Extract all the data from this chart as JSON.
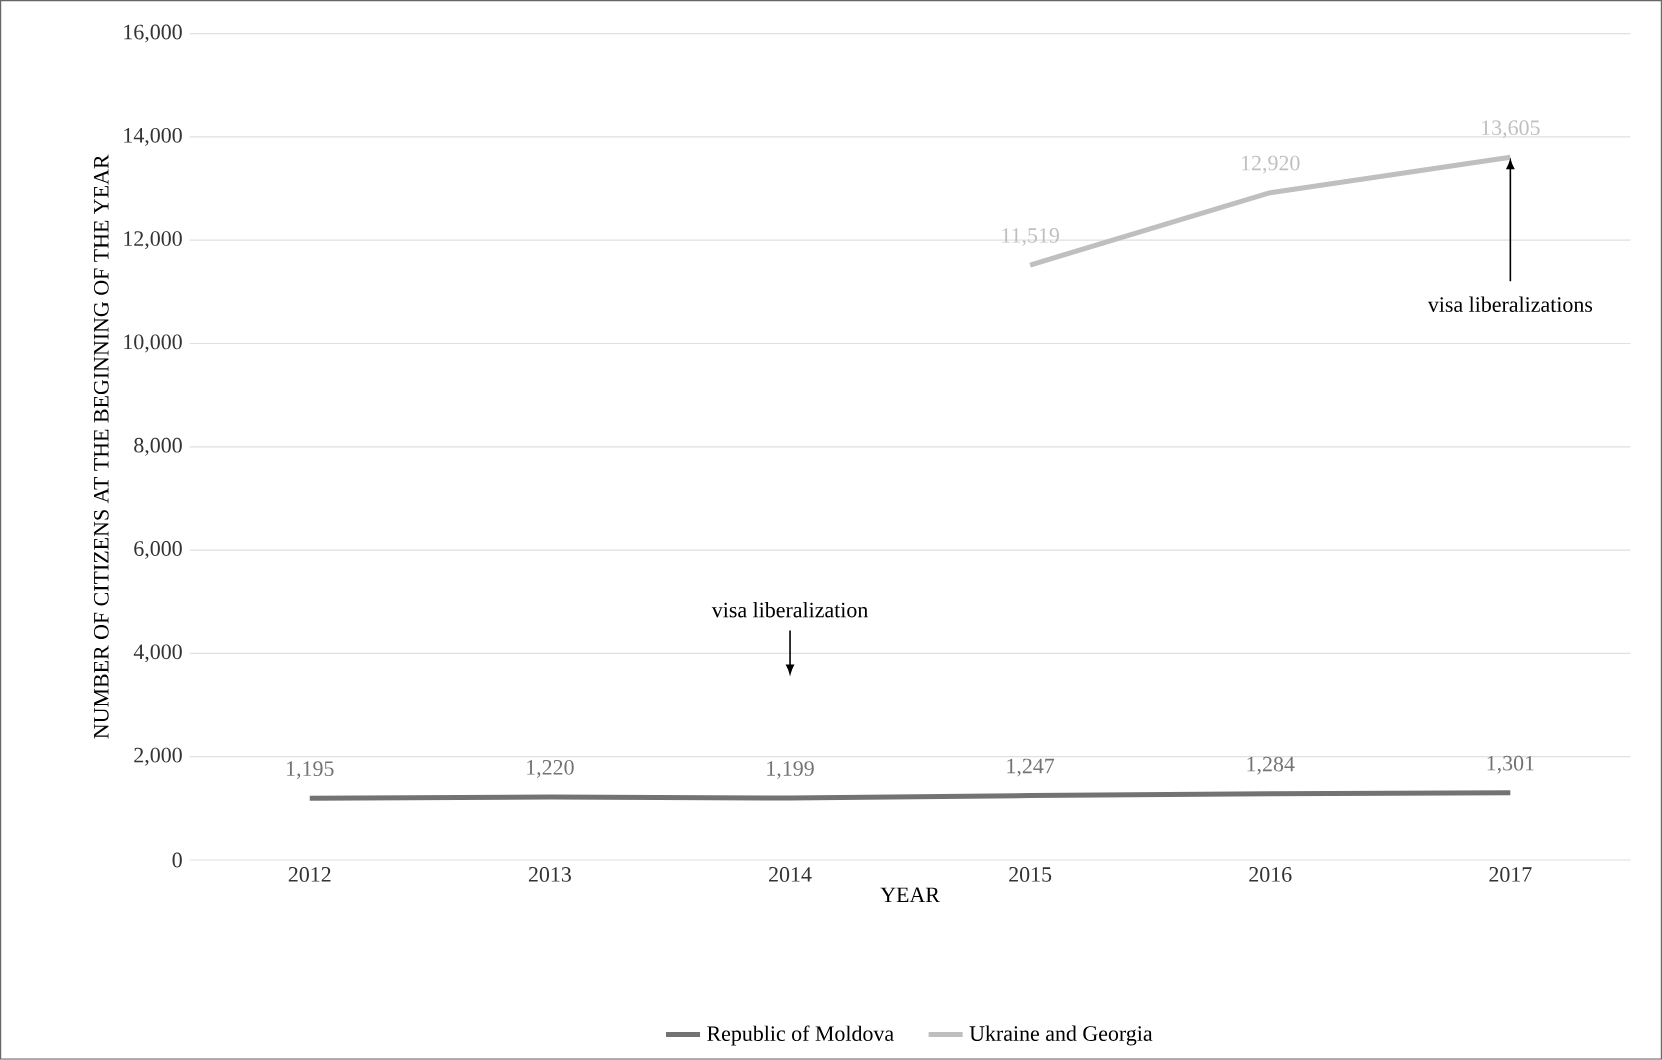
{
  "chart_data": {
    "type": "line",
    "xlabel": "YEAR",
    "ylabel": "NUMBER OF CITIZENS AT THE BEGINNING OF THE YEAR",
    "categories": [
      "2012",
      "2013",
      "2014",
      "2015",
      "2016",
      "2017"
    ],
    "series": [
      {
        "name": "Republic of Moldova",
        "color": "#737373",
        "values": [
          1195,
          1220,
          1199,
          1247,
          1284,
          1301
        ],
        "value_labels": [
          "1,195",
          "1,220",
          "1,199",
          "1,247",
          "1,284",
          "1,301"
        ]
      },
      {
        "name": "Ukraine and Georgia",
        "color": "#bfbfbf",
        "values": [
          null,
          null,
          null,
          11519,
          12920,
          13605
        ],
        "value_labels": [
          null,
          null,
          null,
          "11,519",
          "12,920",
          "13,605"
        ]
      }
    ],
    "ylim": [
      0,
      16000
    ],
    "yticks": [
      {
        "value": 0,
        "label": "0"
      },
      {
        "value": 2000,
        "label": "2,000"
      },
      {
        "value": 4000,
        "label": "4,000"
      },
      {
        "value": 6000,
        "label": "6,000"
      },
      {
        "value": 8000,
        "label": "8,000"
      },
      {
        "value": 10000,
        "label": "10,000"
      },
      {
        "value": 12000,
        "label": "12,000"
      },
      {
        "value": 14000,
        "label": "14,000"
      },
      {
        "value": 16000,
        "label": "16,000"
      }
    ],
    "annotations": [
      "visa liberalization",
      {
        "text": "visa liberalizations",
        "x": "2017",
        "y": 13605
      }
    ],
    "data_labels": true,
    "grid": "y",
    "legend": "bottom",
    "marker": "none",
    "line_style": "solid"
  }
}
